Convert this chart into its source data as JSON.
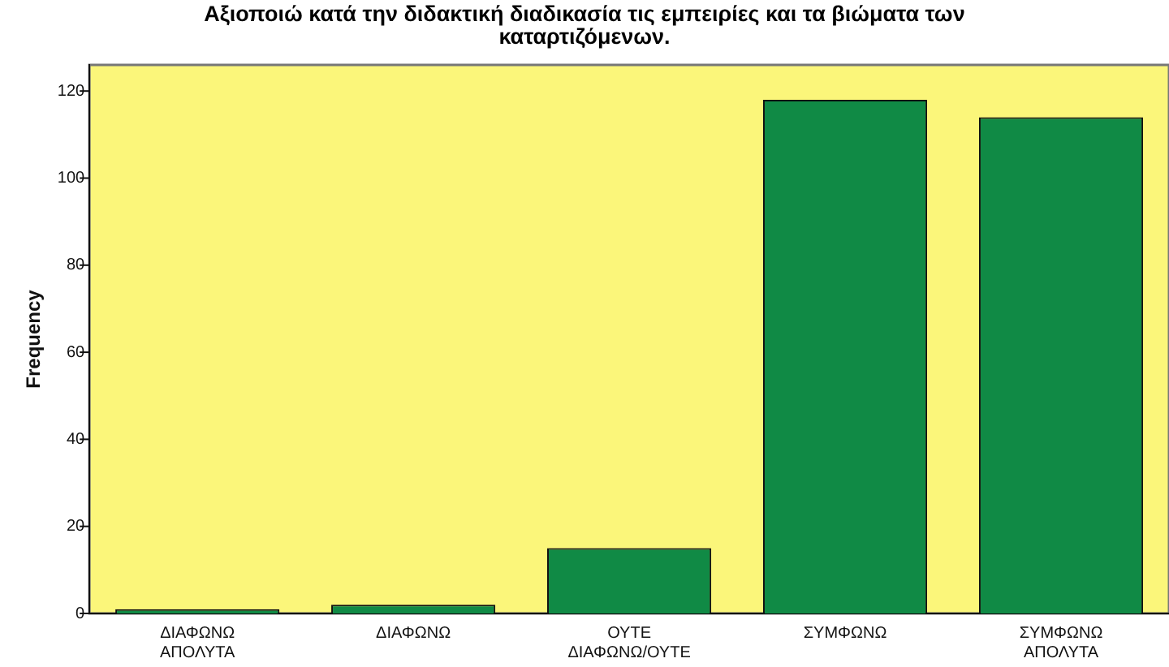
{
  "chart_data": {
    "type": "bar",
    "title": "Αξιοποιώ κατά την διδακτική διαδικασία τις εμπειρίες και τα βιώματα των καταρτιζόμενων.",
    "ylabel": "Frequency",
    "categories": [
      "ΔΙΑΦΩΝΩ ΑΠΟΛΥΤΑ",
      "ΔΙΑΦΩΝΩ",
      "ΟΥΤΕ ΔΙΑΦΩΝΩ/ΟΥΤΕ",
      "ΣΥΜΦΩΝΩ",
      "ΣΥΜΦΩΝΩ ΑΠΟΛΥΤΑ"
    ],
    "values": [
      1,
      2,
      15,
      118,
      114
    ],
    "color": "#108a45",
    "ylim": [
      0,
      126
    ],
    "yticks": [
      0,
      20,
      40,
      60,
      80,
      100,
      120
    ],
    "grid": false,
    "legend": false
  }
}
